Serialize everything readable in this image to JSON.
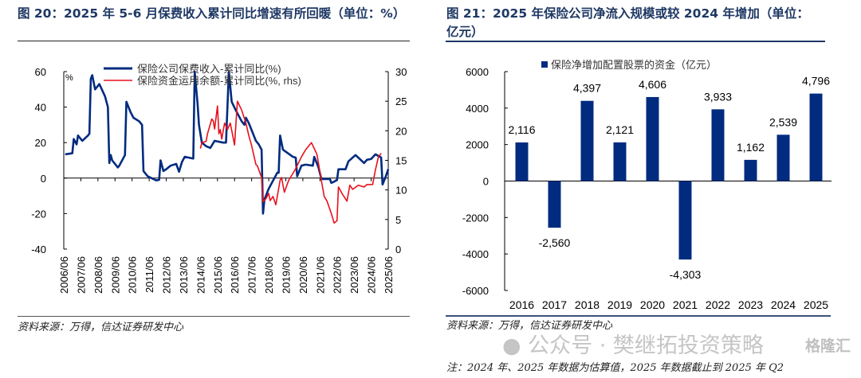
{
  "left_panel": {
    "title": "图 20：2025 年 5-6 月保费收入累计同比增速有所回暖（单位：%）",
    "source": "资料来源：万得，信达证券研发中心"
  },
  "right_panel": {
    "title_line1": "图 21：2025 年保险公司净流入规模或较 2024 年增加（单位：",
    "title_line2": "亿元）",
    "source": "资料来源：万得，信达证券研发中心",
    "note": "注：2024 年、2025 年数据为估算值，2025 年数据截止到 2025 年 Q2"
  },
  "watermark": {
    "text": "公众号 · 樊继拓投资策略",
    "logo": "格隆汇",
    "icon": "wechat-icon"
  },
  "chart_data": [
    {
      "type": "line",
      "y_unit_label": "%",
      "x_tick_labels": [
        "2006/06",
        "2007/06",
        "2008/06",
        "2009/06",
        "2010/06",
        "2011/06",
        "2012/06",
        "2013/06",
        "2014/06",
        "2015/06",
        "2016/06",
        "2017/06",
        "2018/06",
        "2019/06",
        "2020/06",
        "2021/06",
        "2022/06",
        "2023/06",
        "2024/06",
        "2025/06"
      ],
      "ylim_left": [
        -40,
        60
      ],
      "yticks_left": [
        "60",
        "40",
        "20",
        "0",
        "-20",
        "-40"
      ],
      "ylim_right": [
        0,
        30
      ],
      "yticks_right": [
        "30",
        "25",
        "20",
        "15",
        "10",
        "5",
        "0"
      ],
      "legend_placement": "top",
      "grid": false,
      "series": [
        {
          "name": "保险公司保费收入-累计同比(%)",
          "axis": "left",
          "color": "#002b7f",
          "points": [
            [
              "2006-07",
              13.4
            ],
            [
              "2006-12",
              14
            ],
            [
              "2007-01",
              22
            ],
            [
              "2007-03",
              19
            ],
            [
              "2007-04",
              24
            ],
            [
              "2007-07",
              21
            ],
            [
              "2007-11",
              24
            ],
            [
              "2007-12",
              25
            ],
            [
              "2008-01",
              56
            ],
            [
              "2008-02",
              58
            ],
            [
              "2008-04",
              50
            ],
            [
              "2008-07",
              53
            ],
            [
              "2008-11",
              46
            ],
            [
              "2009-01",
              40
            ],
            [
              "2009-02",
              8.5
            ],
            [
              "2009-03",
              13
            ],
            [
              "2009-04",
              10
            ],
            [
              "2009-08",
              6
            ],
            [
              "2009-09",
              7
            ],
            [
              "2010-01",
              13
            ],
            [
              "2010-02",
              43
            ],
            [
              "2010-05",
              37
            ],
            [
              "2010-07",
              34
            ],
            [
              "2010-11",
              32
            ],
            [
              "2011-01",
              30
            ],
            [
              "2011-02",
              4
            ],
            [
              "2011-05",
              1
            ],
            [
              "2011-11",
              -1.3
            ],
            [
              "2012-01",
              -1
            ],
            [
              "2012-02",
              10
            ],
            [
              "2012-04",
              4
            ],
            [
              "2012-06",
              5
            ],
            [
              "2012-09",
              7
            ],
            [
              "2013-01",
              8
            ],
            [
              "2013-03",
              3.6
            ],
            [
              "2013-05",
              9
            ],
            [
              "2013-07",
              12
            ],
            [
              "2014-01",
              11
            ],
            [
              "2014-02",
              60
            ],
            [
              "2014-04",
              42
            ],
            [
              "2014-05",
              30
            ],
            [
              "2014-07",
              20
            ],
            [
              "2014-10",
              18
            ],
            [
              "2015-01",
              17
            ],
            [
              "2015-04",
              21
            ],
            [
              "2015-10",
              20
            ],
            [
              "2015-12",
              20
            ],
            [
              "2016-02",
              60
            ],
            [
              "2016-04",
              43
            ],
            [
              "2016-07",
              38
            ],
            [
              "2016-11",
              32
            ],
            [
              "2017-01",
              30
            ],
            [
              "2017-02",
              34
            ],
            [
              "2017-04",
              31
            ],
            [
              "2017-09",
              21
            ],
            [
              "2017-11",
              19
            ],
            [
              "2018-01",
              16
            ],
            [
              "2018-02",
              -20
            ],
            [
              "2018-03",
              -12
            ],
            [
              "2018-06",
              -6
            ],
            [
              "2018-12",
              3
            ],
            [
              "2019-01",
              3
            ],
            [
              "2019-02",
              24
            ],
            [
              "2019-04",
              16
            ],
            [
              "2019-11",
              12
            ],
            [
              "2020-01",
              11.5
            ],
            [
              "2020-02",
              1
            ],
            [
              "2020-05",
              7
            ],
            [
              "2020-08",
              7.6
            ],
            [
              "2021-01",
              7
            ],
            [
              "2021-02",
              12
            ],
            [
              "2021-05",
              6
            ],
            [
              "2021-07",
              -0.5
            ],
            [
              "2022-01",
              -0.5
            ],
            [
              "2022-02",
              -2.7
            ],
            [
              "2022-04",
              -2
            ],
            [
              "2022-06",
              -1
            ],
            [
              "2022-07",
              5
            ],
            [
              "2022-12",
              5
            ],
            [
              "2023-02",
              9.4
            ],
            [
              "2023-07",
              13
            ],
            [
              "2024-01",
              8.5
            ],
            [
              "2024-03",
              10.3
            ],
            [
              "2024-06",
              10.8
            ],
            [
              "2024-09",
              13.4
            ],
            [
              "2025-01",
              11.6
            ],
            [
              "2025-02",
              -3.6
            ],
            [
              "2025-04",
              0.4
            ],
            [
              "2025-06",
              5
            ]
          ]
        },
        {
          "name": "保险资金运用余额-累计同比(%, rhs)",
          "axis": "right",
          "color": "#e8101c",
          "points": [
            [
              "2014-06",
              17
            ],
            [
              "2014-07",
              18
            ],
            [
              "2014-10",
              18.2
            ],
            [
              "2014-11",
              19.5
            ],
            [
              "2015-02",
              22
            ],
            [
              "2015-03",
              21.7
            ],
            [
              "2015-04",
              20.3
            ],
            [
              "2015-06",
              24.2
            ],
            [
              "2015-07",
              19.5
            ],
            [
              "2015-08",
              20.2
            ],
            [
              "2015-09",
              18.6
            ],
            [
              "2015-11",
              21.3
            ],
            [
              "2016-01",
              20.2
            ],
            [
              "2016-03",
              21.3
            ],
            [
              "2016-06",
              17.6
            ],
            [
              "2016-08",
              25
            ],
            [
              "2016-11",
              23.5
            ],
            [
              "2017-02",
              21.3
            ],
            [
              "2017-04",
              19.2
            ],
            [
              "2017-06",
              17.5
            ],
            [
              "2017-09",
              14.3
            ],
            [
              "2017-10",
              14.1
            ],
            [
              "2018-01",
              12.1
            ],
            [
              "2018-02",
              8
            ],
            [
              "2018-04",
              8.5
            ],
            [
              "2018-06",
              9.4
            ],
            [
              "2018-07",
              8.2
            ],
            [
              "2018-09",
              8.9
            ],
            [
              "2018-11",
              7.5
            ],
            [
              "2019-02",
              11.6
            ],
            [
              "2019-03",
              12.1
            ],
            [
              "2019-05",
              9.6
            ],
            [
              "2019-08",
              11.6
            ],
            [
              "2019-11",
              12.8
            ],
            [
              "2020-01",
              13.6
            ],
            [
              "2020-05",
              15.6
            ],
            [
              "2020-08",
              16.8
            ],
            [
              "2020-12",
              18
            ],
            [
              "2021-03",
              16.5
            ],
            [
              "2021-04",
              15.9
            ],
            [
              "2021-07",
              11.6
            ],
            [
              "2021-09",
              8.9
            ],
            [
              "2021-11",
              8.1
            ],
            [
              "2022-02",
              6
            ],
            [
              "2022-04",
              4.4
            ],
            [
              "2022-06",
              4.8
            ],
            [
              "2022-07",
              10.5
            ],
            [
              "2022-10",
              9.2
            ],
            [
              "2023-01",
              8.1
            ],
            [
              "2023-03",
              10.8
            ],
            [
              "2023-05",
              10.1
            ],
            [
              "2023-09",
              10.8
            ],
            [
              "2024-01",
              10.5
            ],
            [
              "2024-03",
              10.9
            ],
            [
              "2024-07",
              10.9
            ],
            [
              "2024-09",
              13.4
            ],
            [
              "2024-11",
              15.5
            ],
            [
              "2025-01",
              16.2
            ]
          ]
        }
      ]
    },
    {
      "type": "bar",
      "categories": [
        "2016",
        "2017",
        "2018",
        "2019",
        "2020",
        "2021",
        "2022",
        "2023",
        "2024",
        "2025"
      ],
      "series": [
        {
          "name": "保险净增加配置股票的资金（亿元）",
          "color": "#002b7f",
          "values": [
            2116,
            -2560,
            4397,
            2121,
            4606,
            -4303,
            3933,
            1162,
            2539,
            4796
          ],
          "labels": [
            "2,116",
            "-2,560",
            "4,397",
            "2,121",
            "4,606",
            "-4,303",
            "3,933",
            "1,162",
            "2,539",
            "4,796"
          ]
        }
      ],
      "ylim": [
        -6000,
        6000
      ],
      "yticks": [
        "6000",
        "4000",
        "2000",
        "0",
        "-2000",
        "-4000",
        "-6000"
      ],
      "legend_placement": "top-left",
      "grid": false
    }
  ]
}
